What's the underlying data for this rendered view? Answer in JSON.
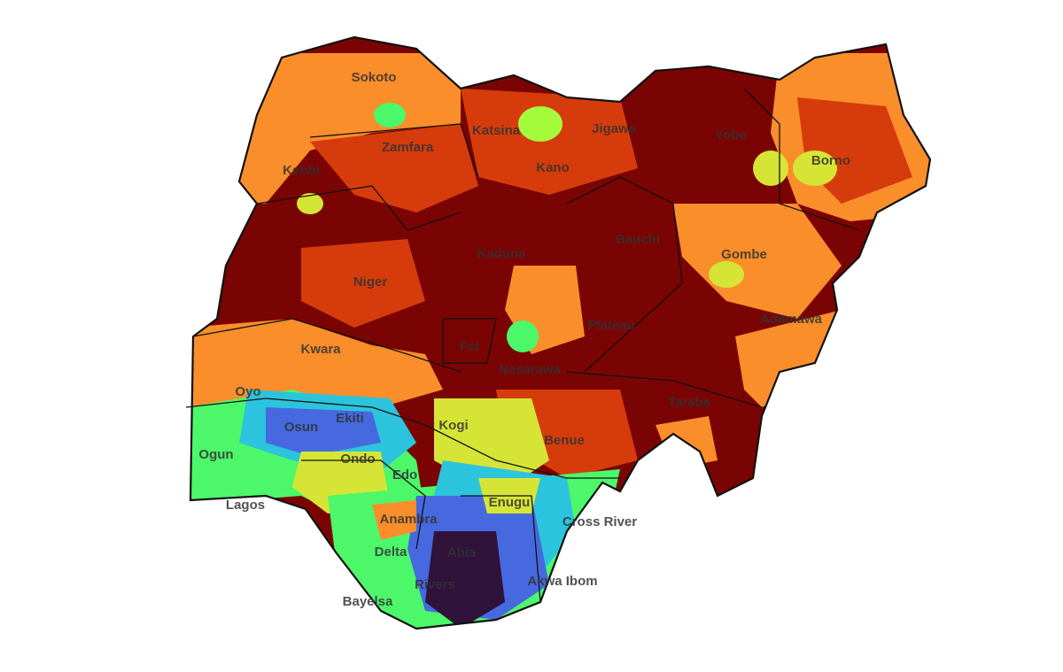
{
  "map": {
    "labels": [
      "Sokoto",
      "Katsina",
      "Jigawa",
      "Yobe",
      "Borno",
      "Zamfara",
      "Kano",
      "Kebbi",
      "Kaduna",
      "Bauchi",
      "Gombe",
      "Niger",
      "Adamawa",
      "Plateau",
      "Fct",
      "Nasarawa",
      "Kwara",
      "Taraba",
      "Oyo",
      "Osun",
      "Ekiti",
      "Kogi",
      "Benue",
      "Ogun",
      "Ondo",
      "Edo",
      "Lagos",
      "Enugu",
      "Anambra",
      "Cross River",
      "Delta",
      "Abia",
      "Akwa Ibom",
      "Rivers",
      "Bayelsa"
    ]
  }
}
